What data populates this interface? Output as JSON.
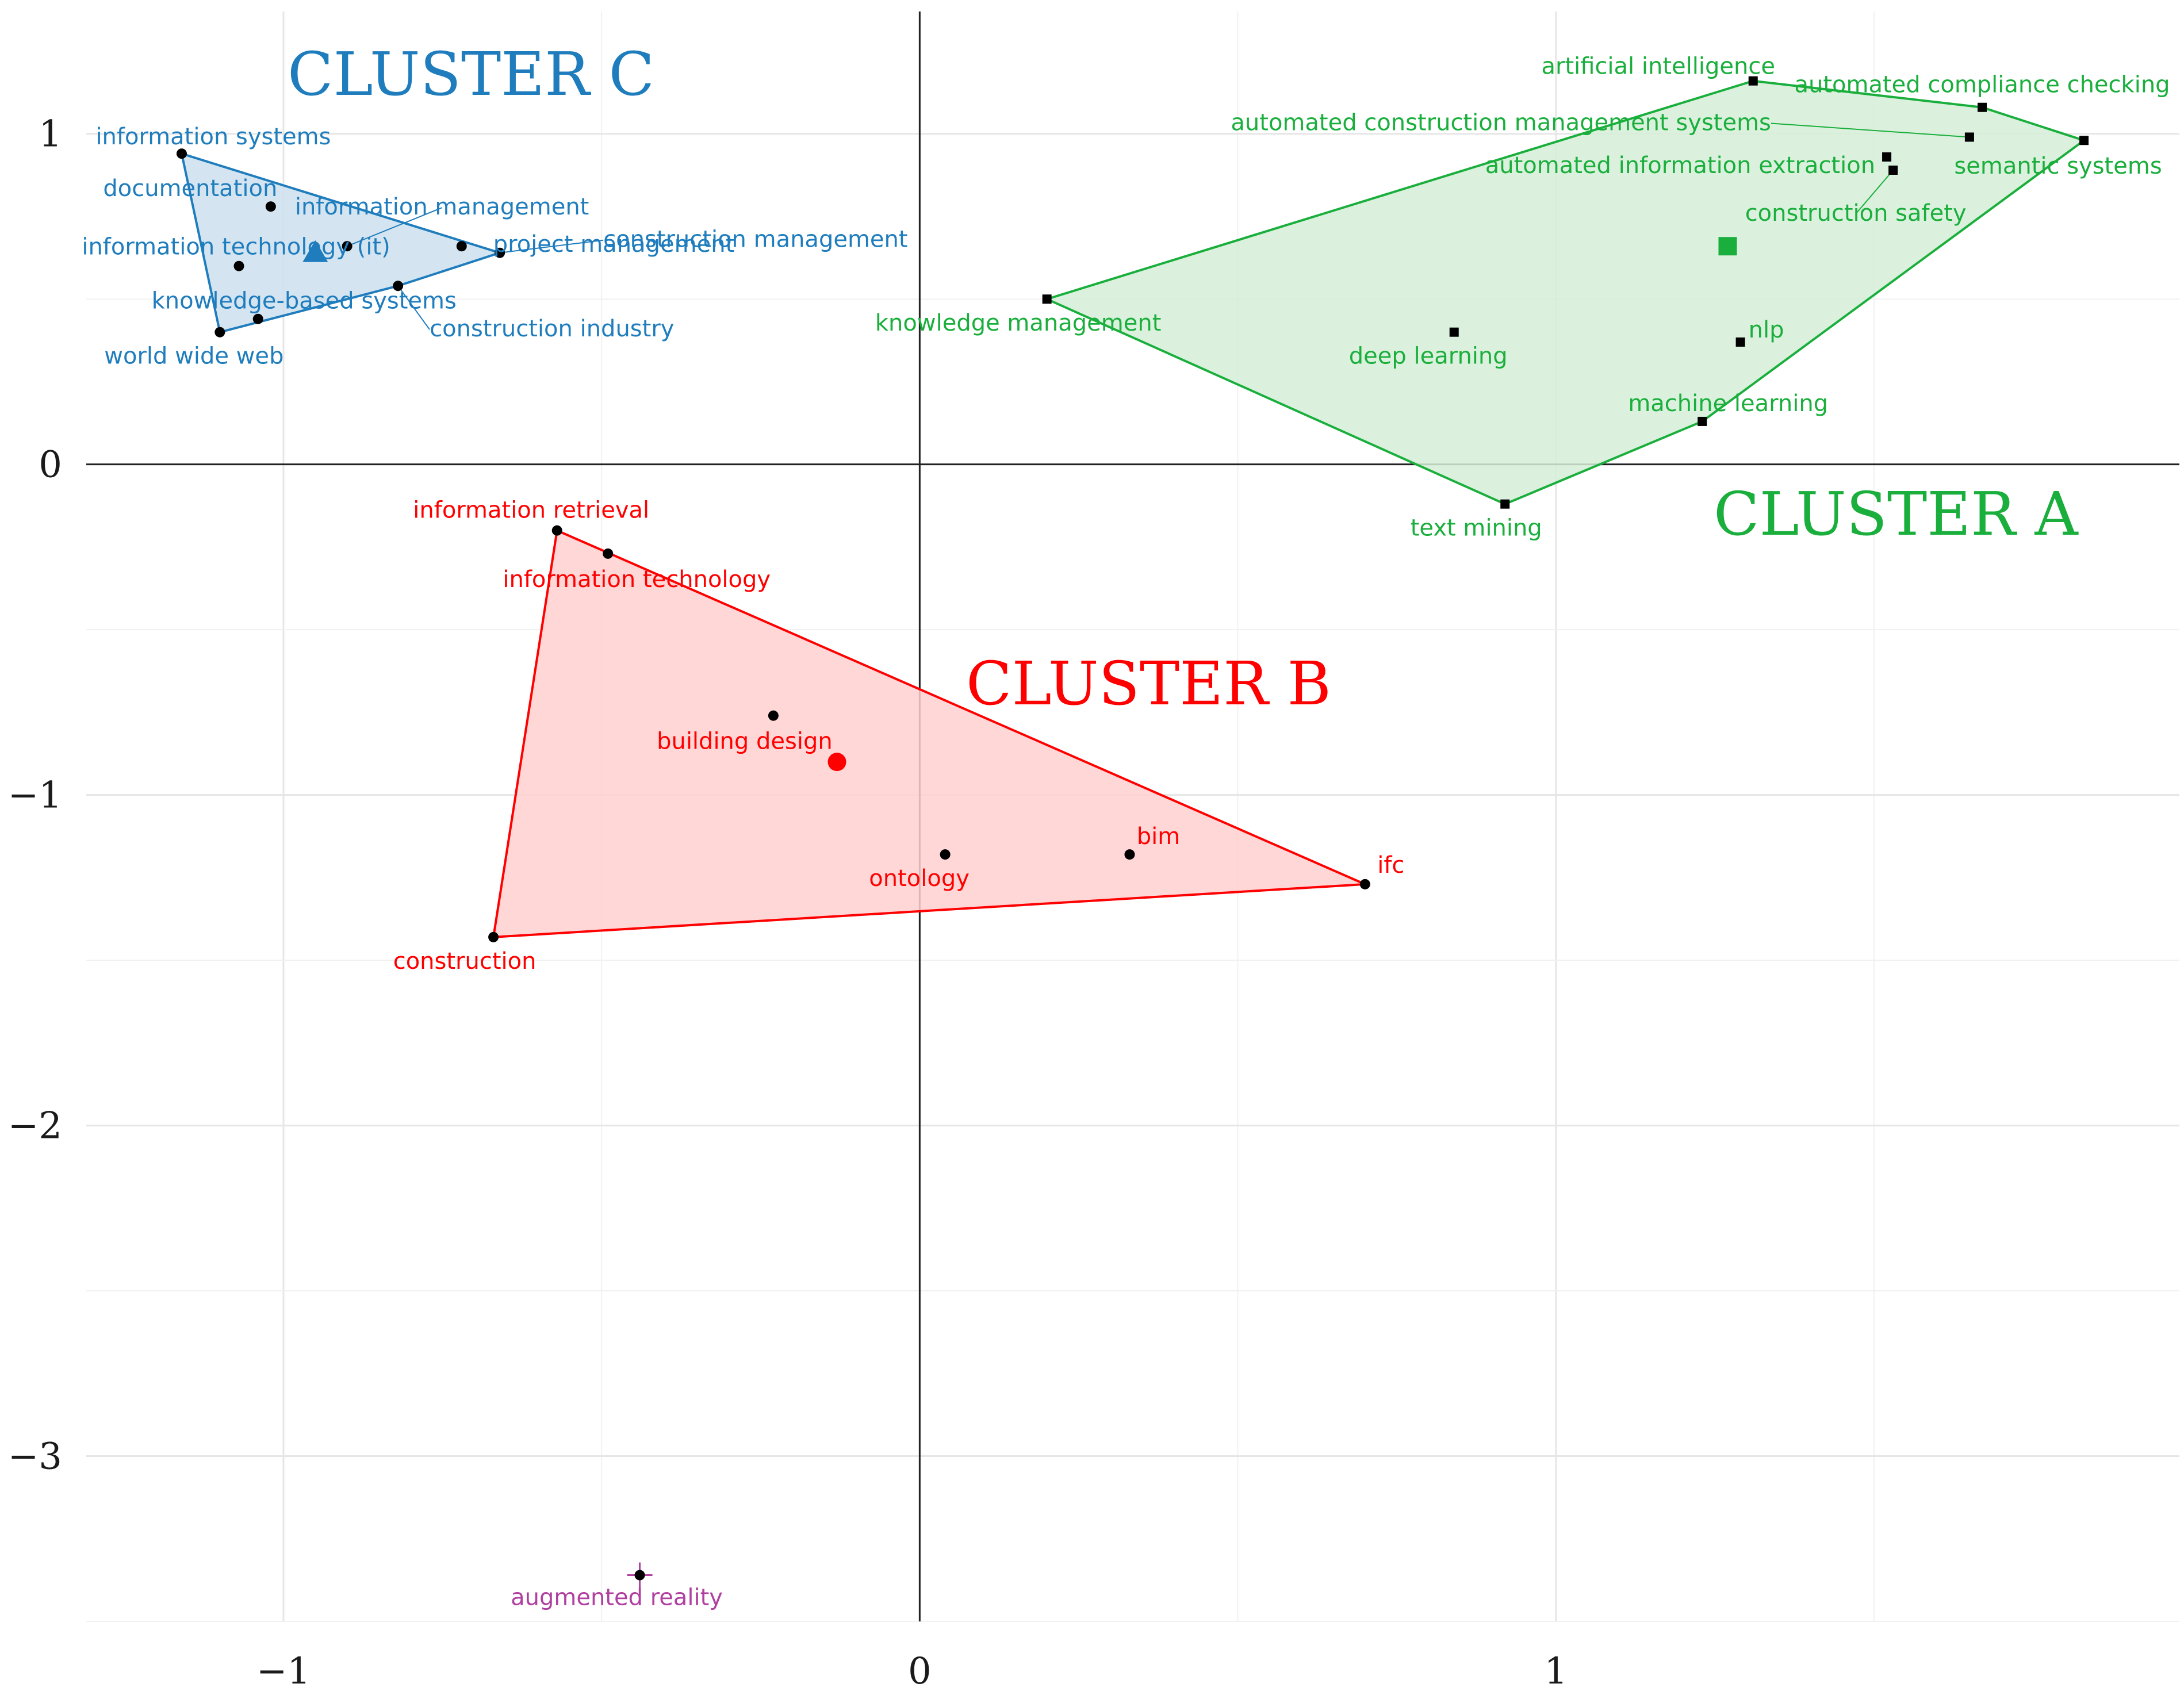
{
  "chart_data": {
    "type": "scatter",
    "title": "",
    "xlabel": "",
    "ylabel": "",
    "xlim": [
      -1.31,
      1.98
    ],
    "ylim": [
      -3.5,
      1.37
    ],
    "x_ticks": [
      -1,
      0,
      1
    ],
    "x_tick_labels": [
      "−1",
      "0",
      "1"
    ],
    "y_ticks": [
      -3,
      -2,
      -1,
      0,
      1
    ],
    "y_tick_labels": [
      "−3",
      "−2",
      "−1",
      "0",
      "1"
    ],
    "grid": true,
    "axis_lines_at_origin": true,
    "clusters": [
      {
        "name": "CLUSTER A",
        "color": "#1aaf3c",
        "fill": "#d5eed8",
        "centroid_marker": "square",
        "centroid": [
          1.27,
          0.66
        ],
        "points": [
          {
            "label": "artificial intelligence",
            "x": 1.31,
            "y": 1.16
          },
          {
            "label": "automated compliance checking",
            "x": 1.67,
            "y": 1.08
          },
          {
            "label": "automated construction management systems",
            "x": 1.65,
            "y": 0.99
          },
          {
            "label": "semantic systems",
            "x": 1.83,
            "y": 0.98
          },
          {
            "label": "automated information extraction",
            "x": 1.52,
            "y": 0.93
          },
          {
            "label": "construction safety",
            "x": 1.53,
            "y": 0.89
          },
          {
            "label": "knowledge management",
            "x": 0.2,
            "y": 0.5
          },
          {
            "label": "deep learning",
            "x": 0.84,
            "y": 0.4
          },
          {
            "label": "nlp",
            "x": 1.29,
            "y": 0.37
          },
          {
            "label": "machine learning",
            "x": 1.23,
            "y": 0.13
          },
          {
            "label": "text mining",
            "x": 0.92,
            "y": -0.12
          }
        ]
      },
      {
        "name": "CLUSTER B",
        "color": "#ff0000",
        "fill": "#ffd0d0",
        "centroid_marker": "circle",
        "centroid": [
          -0.13,
          -0.9
        ],
        "points": [
          {
            "label": "information retrieval",
            "x": -0.57,
            "y": -0.2
          },
          {
            "label": "information technology",
            "x": -0.49,
            "y": -0.27
          },
          {
            "label": "building design",
            "x": -0.23,
            "y": -0.76
          },
          {
            "label": "ontology",
            "x": 0.04,
            "y": -1.18
          },
          {
            "label": "bim",
            "x": 0.33,
            "y": -1.18
          },
          {
            "label": "ifc",
            "x": 0.7,
            "y": -1.27
          },
          {
            "label": "construction",
            "x": -0.67,
            "y": -1.43
          }
        ]
      },
      {
        "name": "CLUSTER C",
        "color": "#1f7dbd",
        "fill": "#cde0ef",
        "centroid_marker": "triangle",
        "centroid": [
          -0.95,
          0.64
        ],
        "points": [
          {
            "label": "information systems",
            "x": -1.16,
            "y": 0.94
          },
          {
            "label": "documentation",
            "x": -1.02,
            "y": 0.78
          },
          {
            "label": "information management",
            "x": -0.9,
            "y": 0.66
          },
          {
            "label": "information technology (it)",
            "x": -1.07,
            "y": 0.6
          },
          {
            "label": "construction management",
            "x": -0.66,
            "y": 0.64
          },
          {
            "label": "project management",
            "x": -0.72,
            "y": 0.66
          },
          {
            "label": "knowledge-based systems",
            "x": -1.04,
            "y": 0.44
          },
          {
            "label": "construction industry",
            "x": -0.82,
            "y": 0.54
          },
          {
            "label": "world wide web",
            "x": -1.1,
            "y": 0.4
          }
        ]
      },
      {
        "name": "",
        "color": "#b03fa0",
        "points": [
          {
            "label": "augmented reality",
            "x": -0.44,
            "y": -3.36
          }
        ]
      }
    ]
  }
}
